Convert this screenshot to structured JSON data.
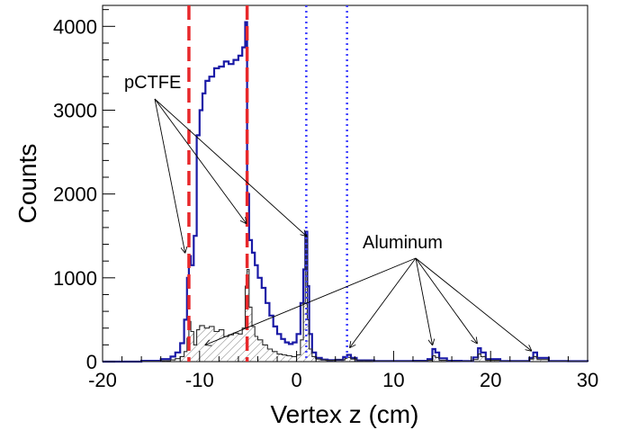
{
  "chart_data": {
    "type": "line",
    "xlabel": "Vertex z (cm)",
    "ylabel": "Counts",
    "xlim": [
      -20,
      30
    ],
    "ylim": [
      0,
      4250
    ],
    "x_ticks": [
      "-20",
      "-10",
      "0",
      "10",
      "20",
      "30"
    ],
    "x_tick_values": [
      -20,
      -10,
      0,
      10,
      20,
      30
    ],
    "y_ticks": [
      "0",
      "1000",
      "2000",
      "3000",
      "4000"
    ],
    "y_tick_values": [
      0,
      1000,
      2000,
      3000,
      4000
    ],
    "grid": false,
    "colors": {
      "full": "#1a1aa6",
      "empty": "#2b2b2b",
      "red_line": "#e8282b",
      "blue_line": "#3d3dff"
    },
    "series": [
      {
        "style": "full",
        "x": [
          -20,
          -16,
          -14,
          -13,
          -12.5,
          -12,
          -11.6,
          -11.3,
          -11.1,
          -10.9,
          -10.6,
          -10.3,
          -10.0,
          -9.7,
          -9.4,
          -9.0,
          -8.5,
          -8.0,
          -7.5,
          -7.0,
          -6.5,
          -6.0,
          -5.6,
          -5.3,
          -5.1,
          -4.9,
          -4.6,
          -4.3,
          -4.0,
          -3.6,
          -3.2,
          -2.8,
          -2.4,
          -2.0,
          -1.6,
          -1.2,
          -0.8,
          -0.4,
          0.0,
          0.4,
          0.7,
          0.9,
          1.1,
          1.3,
          1.6,
          2.0,
          2.6,
          3.2,
          4.0,
          4.8,
          5.2,
          5.6,
          6.2,
          8,
          10,
          12,
          13.5,
          14.0,
          14.3,
          14.7,
          15.5,
          17,
          18.2,
          18.7,
          19.0,
          19.5,
          21,
          23,
          24.0,
          24.4,
          24.8,
          26,
          28,
          30
        ],
        "y": [
          0,
          10,
          30,
          60,
          110,
          220,
          500,
          1000,
          1260,
          1150,
          1500,
          2700,
          3000,
          3200,
          3350,
          3400,
          3500,
          3520,
          3580,
          3550,
          3600,
          3650,
          3750,
          4050,
          2000,
          1450,
          1300,
          1150,
          1000,
          880,
          700,
          550,
          420,
          330,
          270,
          230,
          210,
          230,
          330,
          700,
          1100,
          1550,
          900,
          330,
          110,
          45,
          25,
          18,
          22,
          55,
          80,
          45,
          15,
          8,
          6,
          10,
          30,
          150,
          110,
          40,
          10,
          8,
          50,
          160,
          110,
          30,
          8,
          8,
          45,
          110,
          45,
          8,
          5,
          0
        ]
      },
      {
        "style": "hatched",
        "x": [
          -20,
          -16,
          -14,
          -13,
          -12.5,
          -12,
          -11.6,
          -11.3,
          -11.1,
          -10.9,
          -10.6,
          -10.3,
          -10.0,
          -9.5,
          -9.0,
          -8.5,
          -8.0,
          -7.5,
          -7.0,
          -6.5,
          -6.0,
          -5.6,
          -5.3,
          -5.1,
          -4.9,
          -4.6,
          -4.3,
          -4.0,
          -3.5,
          -3.0,
          -2.5,
          -2.0,
          -1.5,
          -1.0,
          -0.5,
          0.0,
          0.4,
          0.7,
          0.9,
          1.1,
          1.3,
          1.6,
          2.0,
          2.5,
          3.0,
          4.0,
          5.0,
          5.2,
          5.6,
          6.2,
          8,
          10,
          12,
          13.5,
          14.0,
          14.3,
          14.7,
          15.5,
          17,
          18.2,
          18.7,
          19.0,
          19.5,
          21,
          23,
          24.0,
          24.4,
          24.8,
          26,
          28,
          30
        ],
        "y": [
          0,
          5,
          10,
          20,
          35,
          60,
          120,
          280,
          480,
          360,
          200,
          380,
          430,
          400,
          420,
          360,
          380,
          300,
          320,
          340,
          330,
          400,
          900,
          1100,
          650,
          420,
          300,
          260,
          200,
          150,
          120,
          90,
          80,
          70,
          60,
          80,
          260,
          700,
          1500,
          500,
          150,
          60,
          30,
          20,
          15,
          20,
          40,
          50,
          30,
          10,
          6,
          4,
          6,
          15,
          70,
          50,
          15,
          5,
          5,
          25,
          90,
          60,
          15,
          5,
          5,
          30,
          60,
          25,
          5,
          3,
          0
        ]
      }
    ],
    "red_lines_x": [
      -11.1,
      -5.1
    ],
    "blue_lines_x": [
      1.0,
      5.2
    ],
    "annotations": [
      {
        "text": "pCTFE",
        "targets": [
          [
            -11.5,
            1300
          ],
          [
            -5.2,
            1650
          ],
          [
            1.0,
            1500
          ]
        ]
      },
      {
        "text": "Aluminum",
        "targets": [
          [
            -9.4,
            200
          ],
          [
            5.5,
            170
          ],
          [
            14.0,
            200
          ],
          [
            18.6,
            220
          ],
          [
            24.2,
            130
          ]
        ]
      }
    ]
  }
}
